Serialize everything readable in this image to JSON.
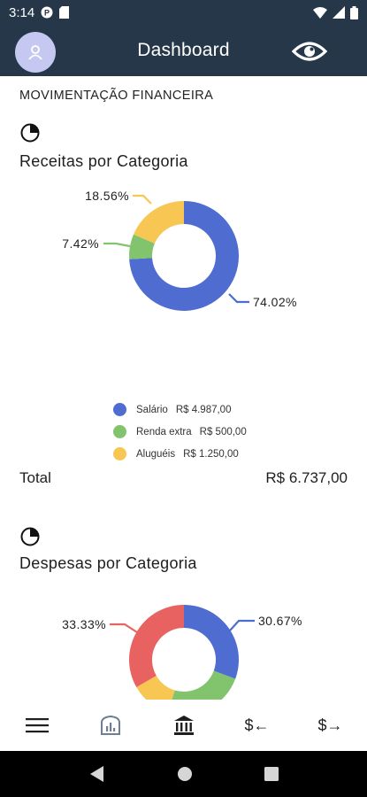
{
  "status_bar": {
    "time": "3:14"
  },
  "app_bar": {
    "title": "Dashboard"
  },
  "section": {
    "header": "MOVIMENTAÇÃO FINANCEIRA"
  },
  "receitas": {
    "title": "Receitas por Categoria",
    "chart_data": {
      "type": "pie",
      "title": "Receitas por Categoria",
      "categories": [
        "Salário",
        "Renda extra",
        "Aluguéis"
      ],
      "values": [
        4987.0,
        500.0,
        1250.0
      ],
      "percent_labels": [
        "74.02%",
        "7.42%",
        "18.56%"
      ],
      "colors": [
        "#4f6cd0",
        "#82c46e",
        "#f8c653"
      ],
      "legend_placement": "bottom"
    },
    "legend": [
      {
        "name": "Salário",
        "value": "R$ 4.987,00",
        "color": "#4f6cd0"
      },
      {
        "name": "Renda extra",
        "value": "R$ 500,00",
        "color": "#82c46e"
      },
      {
        "name": "Aluguéis",
        "value": "R$ 1.250,00",
        "color": "#f8c653"
      }
    ],
    "total_label": "Total",
    "total_value": "R$ 6.737,00"
  },
  "despesas": {
    "title": "Despesas por Categoria",
    "chart_data": {
      "type": "pie",
      "title": "Despesas por Categoria",
      "values": [
        30.67,
        24.0,
        12.0,
        33.33
      ],
      "percent_labels": [
        "30.67%",
        "",
        "",
        "33.33%"
      ],
      "colors": [
        "#4f6cd0",
        "#82c46e",
        "#f8c653",
        "#e86262"
      ]
    }
  },
  "bottom_nav": {
    "items": [
      {
        "name": "menu",
        "icon": "menu-icon"
      },
      {
        "name": "dashboard",
        "icon": "chart-icon"
      },
      {
        "name": "bank",
        "icon": "bank-icon"
      },
      {
        "name": "expense",
        "label": "$←"
      },
      {
        "name": "income",
        "label": "$→"
      }
    ]
  }
}
